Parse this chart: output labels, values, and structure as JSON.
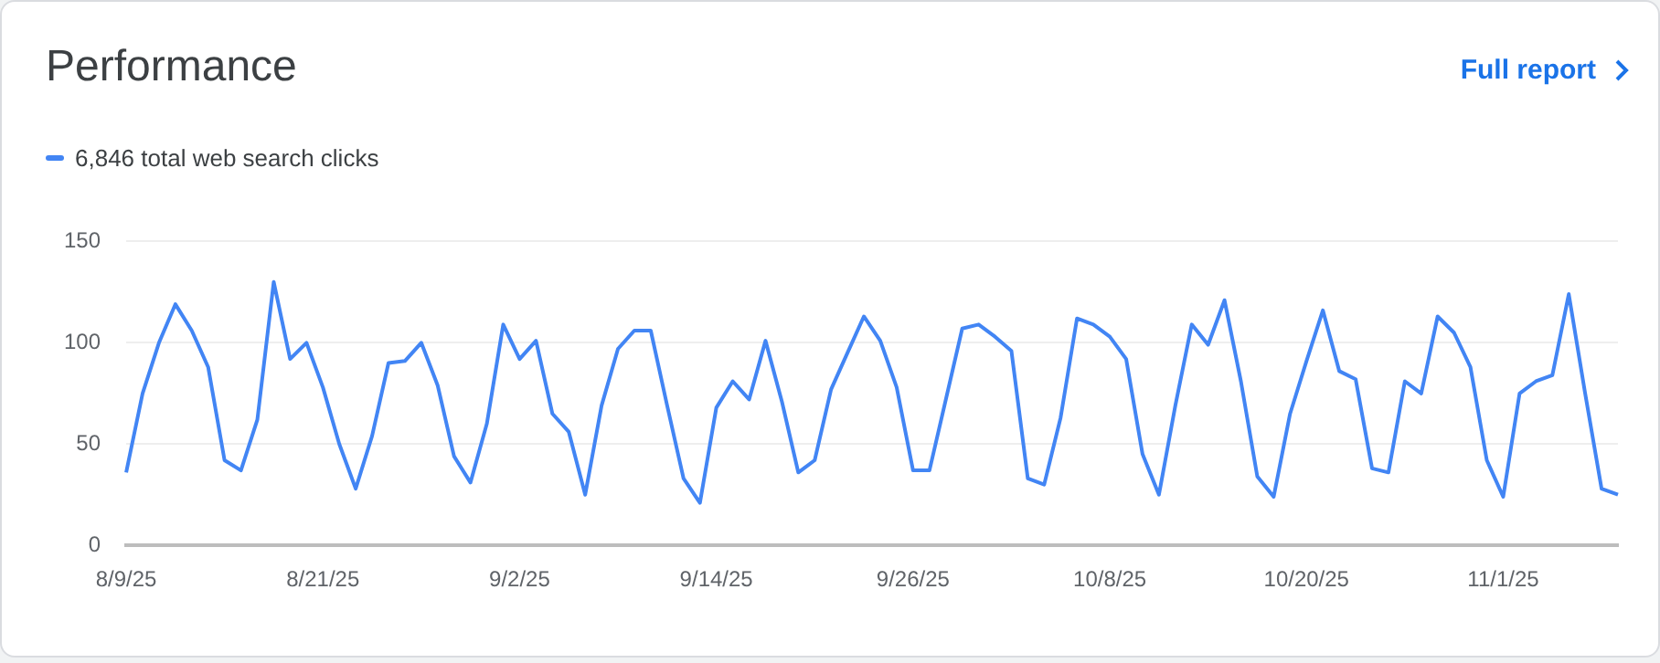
{
  "chart_data": {
    "type": "line",
    "title": "Performance",
    "annotations": [
      "Full report"
    ],
    "categories": [
      "8/9/25",
      null,
      null,
      null,
      null,
      null,
      null,
      null,
      null,
      null,
      null,
      null,
      "8/21/25",
      null,
      null,
      null,
      null,
      null,
      null,
      null,
      null,
      null,
      null,
      null,
      "9/2/25",
      null,
      null,
      null,
      null,
      null,
      null,
      null,
      null,
      null,
      null,
      null,
      "9/14/25",
      null,
      null,
      null,
      null,
      null,
      null,
      null,
      null,
      null,
      null,
      null,
      "9/26/25",
      null,
      null,
      null,
      null,
      null,
      null,
      null,
      null,
      null,
      null,
      null,
      "10/8/25",
      null,
      null,
      null,
      null,
      null,
      null,
      null,
      null,
      null,
      null,
      null,
      "10/20/25",
      null,
      null,
      null,
      null,
      null,
      null,
      null,
      null,
      null,
      null,
      null,
      "11/1/25",
      null,
      null,
      null,
      null,
      null,
      null,
      null
    ],
    "series": [
      {
        "name": "6,846 total web search clicks",
        "color": "#4285f4",
        "values": [
          36,
          75,
          100,
          119,
          106,
          88,
          42,
          37,
          62,
          130,
          92,
          100,
          78,
          50,
          28,
          54,
          90,
          91,
          100,
          79,
          44,
          31,
          60,
          109,
          92,
          101,
          65,
          56,
          25,
          69,
          97,
          106,
          106,
          69,
          33,
          21,
          68,
          81,
          72,
          101,
          71,
          36,
          42,
          77,
          95,
          113,
          101,
          78,
          37,
          37,
          72,
          107,
          109,
          103,
          96,
          33,
          30,
          63,
          112,
          109,
          103,
          92,
          45,
          25,
          69,
          109,
          99,
          121,
          81,
          34,
          24,
          65,
          91,
          116,
          86,
          82,
          38,
          36,
          81,
          75,
          113,
          105,
          88,
          42,
          24,
          75,
          81,
          84,
          124,
          75,
          28,
          25
        ]
      }
    ],
    "ylim": [
      0,
      150
    ],
    "yticks": [
      0,
      50,
      100,
      150
    ],
    "grid": "y",
    "legend": "top left",
    "marker": "none",
    "line_style": "solid"
  }
}
